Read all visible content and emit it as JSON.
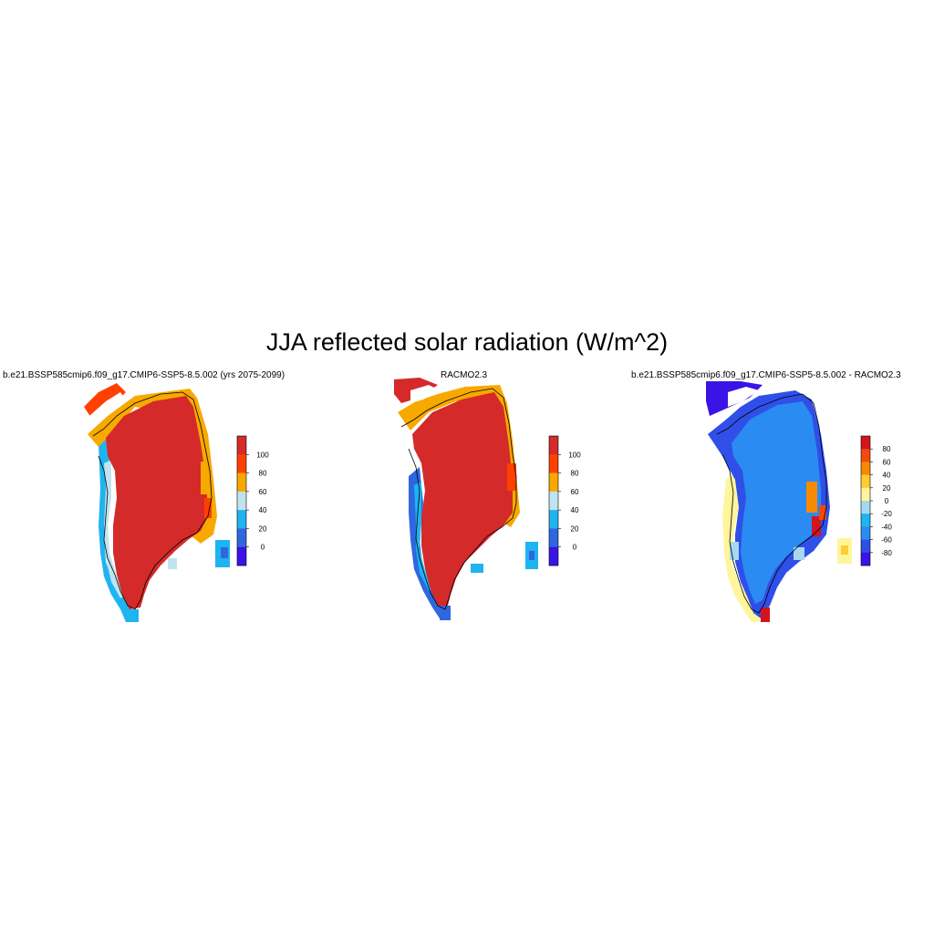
{
  "title": "JJA reflected solar radiation (W/m^2)",
  "colors": {
    "c_lt0": "#3a14e6",
    "c_0_10": "#2f67e0",
    "c_10_20": "#1eb4f0",
    "c_30_40": "#bfe4f0",
    "c_60_70": "#f7a900",
    "c_80_90": "#ff4000",
    "c_gt100": "#d42a2a",
    "d_lt_m80": "#3a14e6",
    "d_m60": "#2f4fe8",
    "d_m40": "#2a8bf2",
    "d_m20": "#1eb4f0",
    "d_0": "#a6d8f0",
    "d_20": "#fff59a",
    "d_40": "#ffcc33",
    "d_60": "#f78a00",
    "d_80": "#f04a10",
    "d_gt80": "#d4141e"
  },
  "panels": [
    {
      "name": "b.e21.BSSP585cmip6.f09_g17.CMIP6-SSP5-8.5.002 (yrs 2075-2099)",
      "colorbar": {
        "ticks": [
          "100",
          "80",
          "60",
          "40",
          "20",
          "0"
        ],
        "colors": [
          "#d42a2a",
          "#ff4000",
          "#f7a900",
          "#bfe4f0",
          "#1eb4f0",
          "#2f67e0",
          "#3a14e6"
        ]
      }
    },
    {
      "name": "RACMO2.3",
      "colorbar": {
        "ticks": [
          "100",
          "80",
          "60",
          "40",
          "20",
          "0"
        ],
        "colors": [
          "#d42a2a",
          "#ff4000",
          "#f7a900",
          "#bfe4f0",
          "#1eb4f0",
          "#2f67e0",
          "#3a14e6"
        ]
      }
    },
    {
      "name": "b.e21.BSSP585cmip6.f09_g17.CMIP6-SSP5-8.5.002 - RACMO2.3",
      "colorbar": {
        "ticks": [
          "80",
          "60",
          "40",
          "20",
          "0",
          "-20",
          "-40",
          "-60",
          "-80"
        ],
        "colors": [
          "#d4141e",
          "#f04a10",
          "#f78a00",
          "#ffcc33",
          "#fff59a",
          "#a6d8f0",
          "#1eb4f0",
          "#2a8bf2",
          "#2f4fe8",
          "#3a14e6"
        ]
      }
    }
  ]
}
